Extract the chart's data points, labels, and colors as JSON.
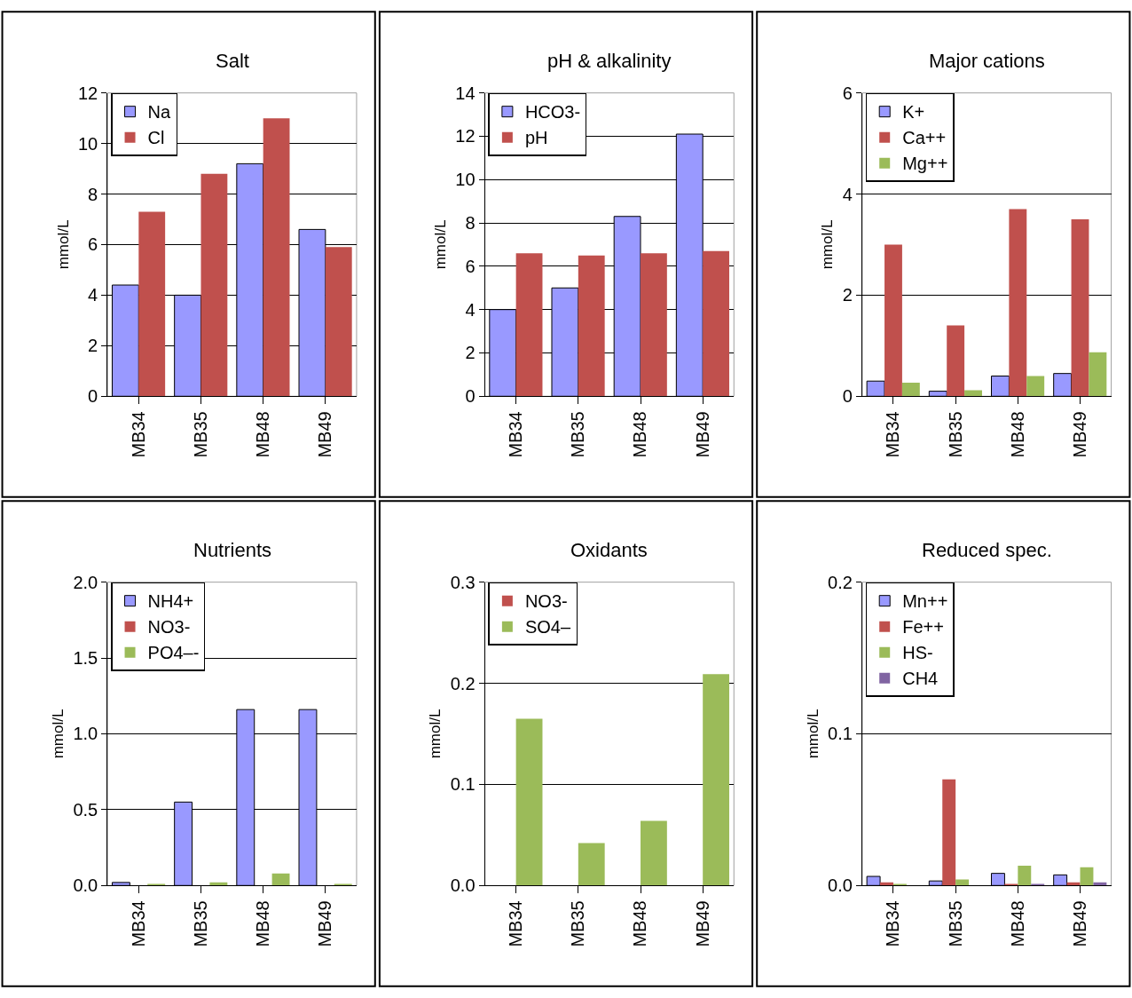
{
  "chart_data": [
    {
      "type": "bar",
      "title": "Salt",
      "ylabel": "mmol/L",
      "categories": [
        "MB34",
        "MB35",
        "MB48",
        "MB49"
      ],
      "ylim": [
        0,
        12
      ],
      "yticks": [
        0,
        2,
        4,
        6,
        8,
        10,
        12
      ],
      "grid": "y",
      "legend": "top left",
      "series": [
        {
          "name": "Na",
          "color": "#9999ff",
          "values": [
            4.4,
            4.0,
            9.2,
            6.6
          ]
        },
        {
          "name": "Cl",
          "color": "#c0504d",
          "values": [
            7.3,
            8.8,
            11.0,
            5.9
          ]
        }
      ]
    },
    {
      "type": "bar",
      "title": "pH & alkalinity",
      "ylabel": "mmol/L",
      "categories": [
        "MB34",
        "MB35",
        "MB48",
        "MB49"
      ],
      "ylim": [
        0,
        14
      ],
      "yticks": [
        0,
        2,
        4,
        6,
        8,
        10,
        12,
        14
      ],
      "grid": "y",
      "legend": "top left",
      "series": [
        {
          "name": "HCO3-",
          "color": "#9999ff",
          "values": [
            4.0,
            5.0,
            8.3,
            12.1
          ]
        },
        {
          "name": "pH",
          "color": "#c0504d",
          "values": [
            6.6,
            6.5,
            6.6,
            6.7
          ]
        }
      ]
    },
    {
      "type": "bar",
      "title": "Major cations",
      "ylabel": "mmol/L",
      "categories": [
        "MB34",
        "MB35",
        "MB48",
        "MB49"
      ],
      "ylim": [
        0,
        6
      ],
      "yticks": [
        0,
        2,
        4,
        6
      ],
      "grid": "y",
      "legend": "top left",
      "series": [
        {
          "name": "K+",
          "color": "#9999ff",
          "values": [
            0.3,
            0.1,
            0.4,
            0.45
          ]
        },
        {
          "name": "Ca++",
          "color": "#c0504d",
          "values": [
            3.0,
            1.4,
            3.7,
            3.5
          ]
        },
        {
          "name": "Mg++",
          "color": "#9bbb59",
          "values": [
            0.27,
            0.12,
            0.4,
            0.87
          ]
        }
      ]
    },
    {
      "type": "bar",
      "title": "Nutrients",
      "ylabel": "mmol/L",
      "categories": [
        "MB34",
        "MB35",
        "MB48",
        "MB49"
      ],
      "ylim": [
        0,
        2.0
      ],
      "yticks": [
        {
          "value": 0,
          "label": "0.0"
        },
        {
          "value": 0.5,
          "label": "0.5"
        },
        {
          "value": 1.0,
          "label": "1.0"
        },
        {
          "value": 1.5,
          "label": "1.5"
        },
        {
          "value": 2.0,
          "label": "2.0"
        }
      ],
      "grid": "y",
      "legend": "top left",
      "series": [
        {
          "name": "NH4+",
          "color": "#9999ff",
          "values": [
            0.02,
            0.55,
            1.16,
            1.16
          ]
        },
        {
          "name": "NO3-",
          "color": "#c0504d",
          "values": [
            0,
            0,
            0,
            0
          ]
        },
        {
          "name": "PO4–-",
          "color": "#9bbb59",
          "values": [
            0.01,
            0.02,
            0.08,
            0.01
          ]
        }
      ]
    },
    {
      "type": "bar",
      "title": "Oxidants",
      "ylabel": "mmol/L",
      "categories": [
        "MB34",
        "MB35",
        "MB48",
        "MB49"
      ],
      "ylim": [
        0,
        0.3
      ],
      "yticks": [
        {
          "value": 0,
          "label": "0.0"
        },
        0.1,
        0.2,
        0.3
      ],
      "grid": "y",
      "legend": "top left",
      "series": [
        {
          "name": "NO3-",
          "color": "#c0504d",
          "values": [
            0,
            0,
            0,
            0
          ]
        },
        {
          "name": "SO4–",
          "color": "#9bbb59",
          "values": [
            0.165,
            0.042,
            0.064,
            0.209
          ]
        }
      ]
    },
    {
      "type": "bar",
      "title": "Reduced spec.",
      "ylabel": "mmol/L",
      "categories": [
        "MB34",
        "MB35",
        "MB48",
        "MB49"
      ],
      "ylim": [
        0,
        0.2
      ],
      "yticks": [
        {
          "value": 0,
          "label": "0.0"
        },
        0.1,
        0.2
      ],
      "grid": "y",
      "legend": "top left",
      "series": [
        {
          "name": "Mn++",
          "color": "#9999ff",
          "values": [
            0.006,
            0.003,
            0.008,
            0.007
          ]
        },
        {
          "name": "Fe++",
          "color": "#c0504d",
          "values": [
            0.002,
            0.07,
            0.001,
            0.002
          ]
        },
        {
          "name": "HS-",
          "color": "#9bbb59",
          "values": [
            0.001,
            0.004,
            0.013,
            0.012
          ]
        },
        {
          "name": "CH4",
          "color": "#8064a2",
          "values": [
            0,
            0,
            0.001,
            0.002
          ]
        }
      ]
    }
  ]
}
